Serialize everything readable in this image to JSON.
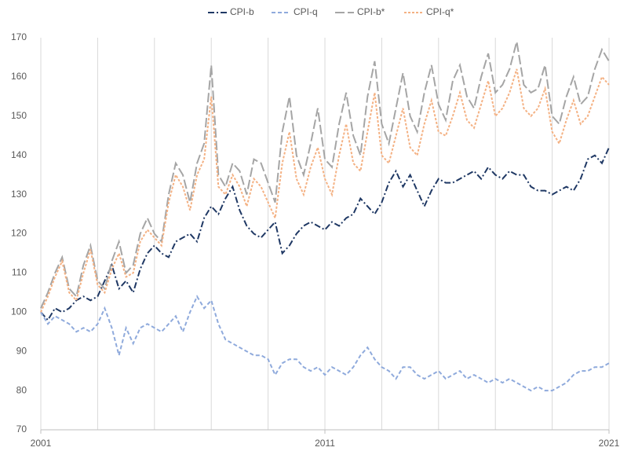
{
  "chart_data": {
    "type": "line",
    "x": [
      2001,
      2001.25,
      2001.5,
      2001.75,
      2002,
      2002.25,
      2002.5,
      2002.75,
      2003,
      2003.25,
      2003.5,
      2003.75,
      2004,
      2004.25,
      2004.5,
      2004.75,
      2005,
      2005.25,
      2005.5,
      2005.75,
      2006,
      2006.25,
      2006.5,
      2006.75,
      2007,
      2007.25,
      2007.5,
      2007.75,
      2008,
      2008.25,
      2008.5,
      2008.75,
      2009,
      2009.25,
      2009.5,
      2009.75,
      2010,
      2010.25,
      2010.5,
      2010.75,
      2011,
      2011.25,
      2011.5,
      2011.75,
      2012,
      2012.25,
      2012.5,
      2012.75,
      2013,
      2013.25,
      2013.5,
      2013.75,
      2014,
      2014.25,
      2014.5,
      2014.75,
      2015,
      2015.25,
      2015.5,
      2015.75,
      2016,
      2016.25,
      2016.5,
      2016.75,
      2017,
      2017.25,
      2017.5,
      2017.75,
      2018,
      2018.25,
      2018.5,
      2018.75,
      2019,
      2019.25,
      2019.5,
      2019.75,
      2020,
      2020.25,
      2020.5,
      2020.75,
      2021
    ],
    "series": [
      {
        "name": "CPI-b",
        "color": "#1f3864",
        "line_style": "dash-dot",
        "values": [
          100,
          98,
          101,
          100,
          101,
          103,
          104,
          103,
          104,
          108,
          112,
          106,
          108,
          105,
          111,
          115,
          117,
          115,
          114,
          118,
          119,
          120,
          118,
          124,
          127,
          125,
          129,
          132,
          126,
          122,
          120,
          119,
          121,
          123,
          115,
          117,
          120,
          122,
          123,
          122,
          121,
          123,
          122,
          124,
          125,
          129,
          127,
          125,
          128,
          133,
          136,
          132,
          135,
          131,
          127,
          131,
          134,
          133,
          133,
          134,
          135,
          136,
          134,
          137,
          135,
          134,
          136,
          135,
          135,
          132,
          131,
          131,
          130,
          131,
          132,
          131,
          134,
          139,
          140,
          138,
          142
        ]
      },
      {
        "name": "CPI-q",
        "color": "#8faadc",
        "line_style": "dashed",
        "values": [
          100,
          97,
          99,
          98,
          97,
          95,
          96,
          95,
          97,
          101,
          96,
          89,
          96,
          92,
          96,
          97,
          96,
          95,
          97,
          99,
          95,
          100,
          104,
          101,
          103,
          97,
          93,
          92,
          91,
          90,
          89,
          89,
          88,
          84,
          87,
          88,
          88,
          86,
          85,
          86,
          84,
          86,
          85,
          84,
          86,
          89,
          91,
          88,
          86,
          85,
          83,
          86,
          86,
          84,
          83,
          84,
          85,
          83,
          84,
          85,
          83,
          84,
          83,
          82,
          83,
          82,
          83,
          82,
          81,
          80,
          81,
          80,
          80,
          81,
          82,
          84,
          85,
          85,
          86,
          86,
          87
        ]
      },
      {
        "name": "CPI-b*",
        "color": "#a5a5a5",
        "line_style": "long-dash",
        "values": [
          101,
          105,
          110,
          114,
          106,
          104,
          112,
          117,
          108,
          106,
          113,
          118,
          110,
          112,
          120,
          124,
          120,
          118,
          130,
          138,
          135,
          128,
          138,
          143,
          163,
          135,
          132,
          138,
          136,
          130,
          139,
          138,
          133,
          128,
          146,
          155,
          140,
          135,
          143,
          152,
          139,
          137,
          148,
          156,
          145,
          140,
          155,
          164,
          148,
          143,
          152,
          161,
          150,
          146,
          156,
          163,
          153,
          149,
          159,
          163,
          155,
          152,
          160,
          166,
          156,
          158,
          162,
          169,
          158,
          156,
          157,
          163,
          150,
          148,
          155,
          160,
          153,
          155,
          162,
          167,
          164
        ]
      },
      {
        "name": "CPI-q*",
        "color": "#f4b183",
        "line_style": "dotted",
        "values": [
          100,
          104,
          109,
          113,
          105,
          103,
          110,
          116,
          107,
          105,
          111,
          115,
          109,
          110,
          118,
          121,
          119,
          117,
          128,
          135,
          132,
          126,
          135,
          139,
          155,
          132,
          130,
          135,
          132,
          127,
          134,
          132,
          128,
          124,
          138,
          146,
          134,
          130,
          137,
          142,
          134,
          130,
          140,
          148,
          138,
          136,
          146,
          156,
          140,
          138,
          145,
          152,
          142,
          140,
          148,
          154,
          146,
          145,
          150,
          156,
          149,
          147,
          153,
          159,
          150,
          152,
          156,
          162,
          152,
          150,
          152,
          157,
          146,
          143,
          149,
          154,
          148,
          150,
          155,
          160,
          158
        ]
      }
    ],
    "xlim": [
      2001,
      2021
    ],
    "xticks": [
      2001,
      2011,
      2021
    ],
    "xgrid": [
      2001,
      2003,
      2005,
      2007,
      2009,
      2011,
      2013,
      2015,
      2017,
      2019,
      2021
    ],
    "ylim": [
      70,
      170
    ],
    "yticks": [
      70,
      80,
      90,
      100,
      110,
      120,
      130,
      140,
      150,
      160,
      170
    ],
    "legend": "top"
  }
}
